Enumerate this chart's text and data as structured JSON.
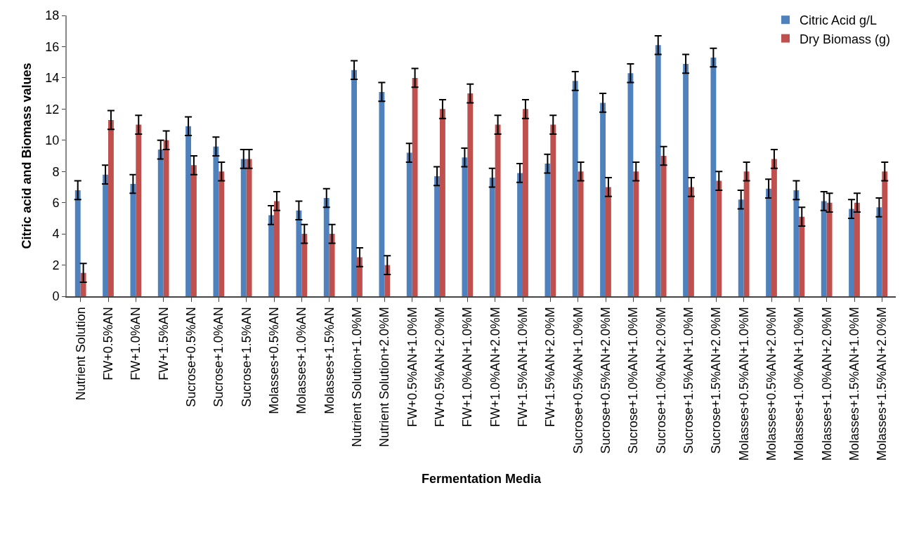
{
  "chart_data": {
    "type": "bar",
    "xlabel": "Fermentation Media",
    "ylabel": "Citric acid and Biomass values",
    "categories": [
      "Nutrient Solution",
      "FW+0.5%AN",
      "FW+1.0%AN",
      "FW+1.5%AN",
      "Sucrose+0.5%AN",
      "Sucrose+1.0%AN",
      "Sucrose+1.5%AN",
      "Molasses+0.5%AN",
      "Molasses+1.0%AN",
      "Molasses+1.5%AN",
      "Nutrient Solution+1.0%M",
      "Nutrient Solution+2.0%M",
      "FW+0.5%AN+1.0%M",
      "FW+0.5%AN+2.0%M",
      "FW+1.0%AN+1.0%M",
      "FW+1.0%AN+2.0%M",
      "FW+1.5%AN+1.0%M",
      "FW+1.5%AN+2.0%M",
      "Sucrose+0.5%AN+1.0%M",
      "Sucrose+0.5%AN+2.0%M",
      "Sucrose+1.0%AN+1.0%M",
      "Sucrose+1.0%AN+2.0%M",
      "Sucrose+1.5%AN+1.0%M",
      "Sucrose+1.5%AN+2.0%M",
      "Molasses+0.5%AN+1.0%M",
      "Molasses+0.5%AN+2.0%M",
      "Molasses+1.0%AN+1.0%M",
      "Molasses+1.0%AN+2.0%M",
      "Molasses+1.5%AN+1.0%M",
      "Molasses+1.5%AN+2.0%M"
    ],
    "series": [
      {
        "name": "Citric Acid g/L",
        "color": "#4f81bd",
        "values": [
          6.8,
          7.8,
          7.2,
          9.4,
          10.9,
          9.6,
          8.8,
          5.2,
          5.5,
          6.3,
          14.5,
          13.1,
          9.2,
          7.7,
          8.9,
          7.6,
          7.9,
          8.5,
          13.8,
          12.4,
          14.3,
          16.1,
          14.9,
          15.3,
          6.2,
          6.9,
          6.8,
          6.1,
          5.6,
          5.7
        ],
        "errors": [
          0.6,
          0.6,
          0.6,
          0.6,
          0.6,
          0.6,
          0.6,
          0.6,
          0.6,
          0.6,
          0.6,
          0.6,
          0.6,
          0.6,
          0.6,
          0.6,
          0.6,
          0.6,
          0.6,
          0.6,
          0.6,
          0.6,
          0.6,
          0.6,
          0.6,
          0.6,
          0.6,
          0.6,
          0.6,
          0.6
        ]
      },
      {
        "name": "Dry Biomass (g)",
        "color": "#c0504d",
        "values": [
          1.5,
          11.3,
          11.0,
          10.0,
          8.4,
          8.0,
          8.8,
          6.1,
          4.0,
          4.0,
          2.5,
          2.0,
          14.0,
          12.0,
          13.0,
          11.0,
          12.0,
          11.0,
          8.0,
          7.0,
          8.0,
          9.0,
          7.0,
          7.4,
          8.0,
          8.8,
          5.1,
          6.0,
          6.0,
          8.0
        ],
        "errors": [
          0.6,
          0.6,
          0.6,
          0.6,
          0.6,
          0.6,
          0.6,
          0.6,
          0.6,
          0.6,
          0.6,
          0.6,
          0.6,
          0.6,
          0.6,
          0.6,
          0.6,
          0.6,
          0.6,
          0.6,
          0.6,
          0.6,
          0.6,
          0.6,
          0.6,
          0.6,
          0.6,
          0.6,
          0.6,
          0.6
        ]
      }
    ],
    "ylim": [
      0,
      18
    ],
    "yticks": [
      0,
      2,
      4,
      6,
      8,
      10,
      12,
      14,
      16,
      18
    ],
    "legend": "top right"
  }
}
